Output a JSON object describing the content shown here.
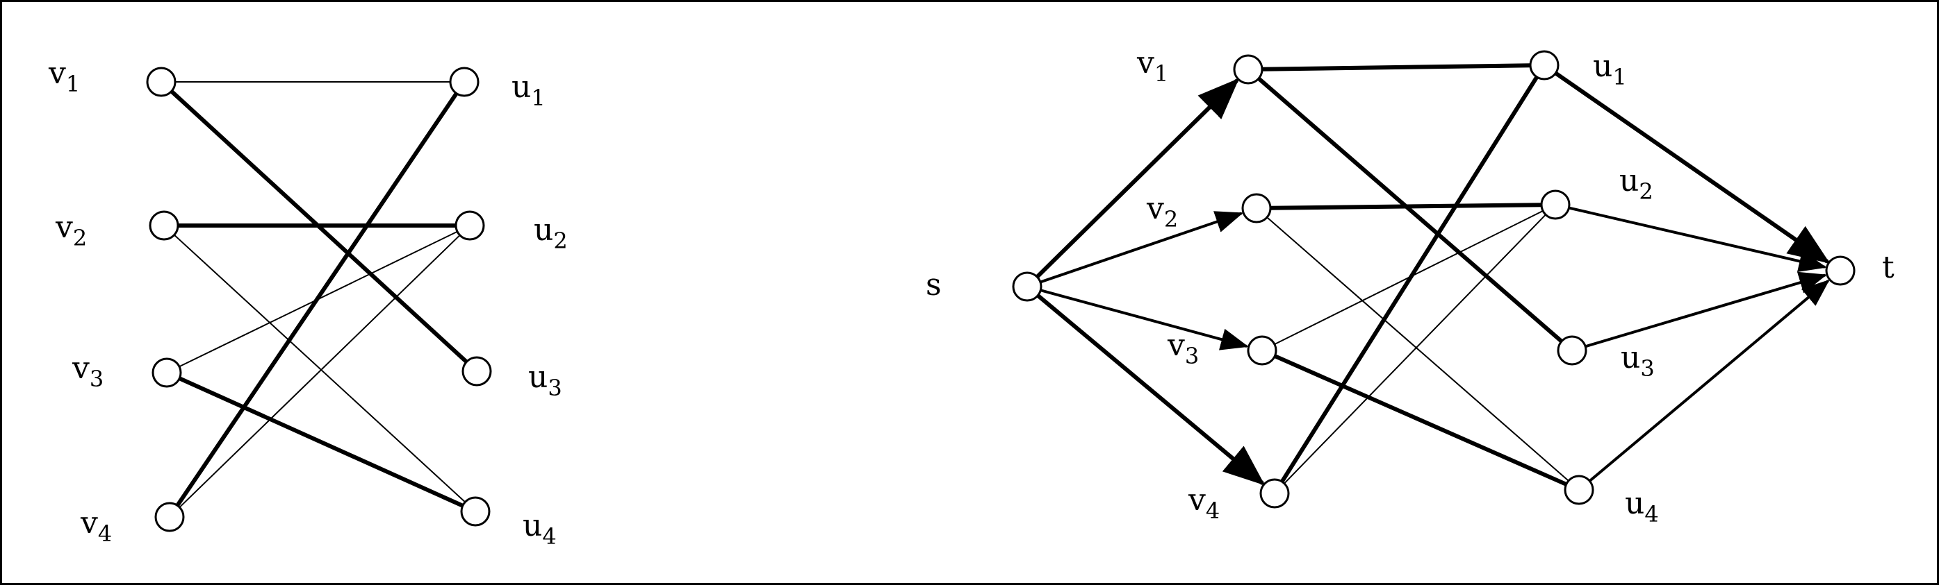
{
  "colors": {
    "background": "#ffffff",
    "ink": "#000000"
  },
  "left_graph": {
    "nodes": [
      {
        "id": "v1",
        "label": "v",
        "sub": "1"
      },
      {
        "id": "v2",
        "label": "v",
        "sub": "2"
      },
      {
        "id": "v3",
        "label": "v",
        "sub": "3"
      },
      {
        "id": "v4",
        "label": "v",
        "sub": "4"
      },
      {
        "id": "u1",
        "label": "u",
        "sub": "1"
      },
      {
        "id": "u2",
        "label": "u",
        "sub": "2"
      },
      {
        "id": "u3",
        "label": "u",
        "sub": "3"
      },
      {
        "id": "u4",
        "label": "u",
        "sub": "4"
      }
    ],
    "edges": [
      {
        "from": "v1",
        "to": "u1",
        "weight": "thin"
      },
      {
        "from": "v1",
        "to": "u3",
        "weight": "bold"
      },
      {
        "from": "v2",
        "to": "u2",
        "weight": "bold"
      },
      {
        "from": "v2",
        "to": "u4",
        "weight": "thin"
      },
      {
        "from": "v3",
        "to": "u2",
        "weight": "thin"
      },
      {
        "from": "v3",
        "to": "u4",
        "weight": "bold"
      },
      {
        "from": "v4",
        "to": "u1",
        "weight": "bold"
      },
      {
        "from": "v4",
        "to": "u2",
        "weight": "thin"
      }
    ]
  },
  "right_graph": {
    "nodes": [
      {
        "id": "s",
        "label": "s",
        "sub": ""
      },
      {
        "id": "v1",
        "label": "v",
        "sub": "1"
      },
      {
        "id": "v2",
        "label": "v",
        "sub": "2"
      },
      {
        "id": "v3",
        "label": "v",
        "sub": "3"
      },
      {
        "id": "v4",
        "label": "v",
        "sub": "4"
      },
      {
        "id": "u1",
        "label": "u",
        "sub": "1"
      },
      {
        "id": "u2",
        "label": "u",
        "sub": "2"
      },
      {
        "id": "u3",
        "label": "u",
        "sub": "3"
      },
      {
        "id": "u4",
        "label": "u",
        "sub": "4"
      },
      {
        "id": "t",
        "label": "t",
        "sub": ""
      }
    ],
    "edges": [
      {
        "from": "s",
        "to": "v1",
        "weight": "bold",
        "arrow": true
      },
      {
        "from": "s",
        "to": "v2",
        "weight": "medium",
        "arrow": true
      },
      {
        "from": "s",
        "to": "v3",
        "weight": "medium",
        "arrow": true
      },
      {
        "from": "s",
        "to": "v4",
        "weight": "bold",
        "arrow": true
      },
      {
        "from": "v1",
        "to": "u1",
        "weight": "bold",
        "arrow": false
      },
      {
        "from": "v1",
        "to": "u3",
        "weight": "bold",
        "arrow": false
      },
      {
        "from": "v2",
        "to": "u2",
        "weight": "bold",
        "arrow": false
      },
      {
        "from": "v2",
        "to": "u4",
        "weight": "thin",
        "arrow": false
      },
      {
        "from": "v3",
        "to": "u2",
        "weight": "thin",
        "arrow": false
      },
      {
        "from": "v3",
        "to": "u4",
        "weight": "bold",
        "arrow": false
      },
      {
        "from": "v4",
        "to": "u1",
        "weight": "bold",
        "arrow": false
      },
      {
        "from": "v4",
        "to": "u2",
        "weight": "thin",
        "arrow": false
      },
      {
        "from": "u1",
        "to": "t",
        "weight": "bold",
        "arrow": true
      },
      {
        "from": "u2",
        "to": "t",
        "weight": "medium",
        "arrow": true
      },
      {
        "from": "u3",
        "to": "t",
        "weight": "medium",
        "arrow": true
      },
      {
        "from": "u4",
        "to": "t",
        "weight": "medium",
        "arrow": true
      }
    ]
  }
}
